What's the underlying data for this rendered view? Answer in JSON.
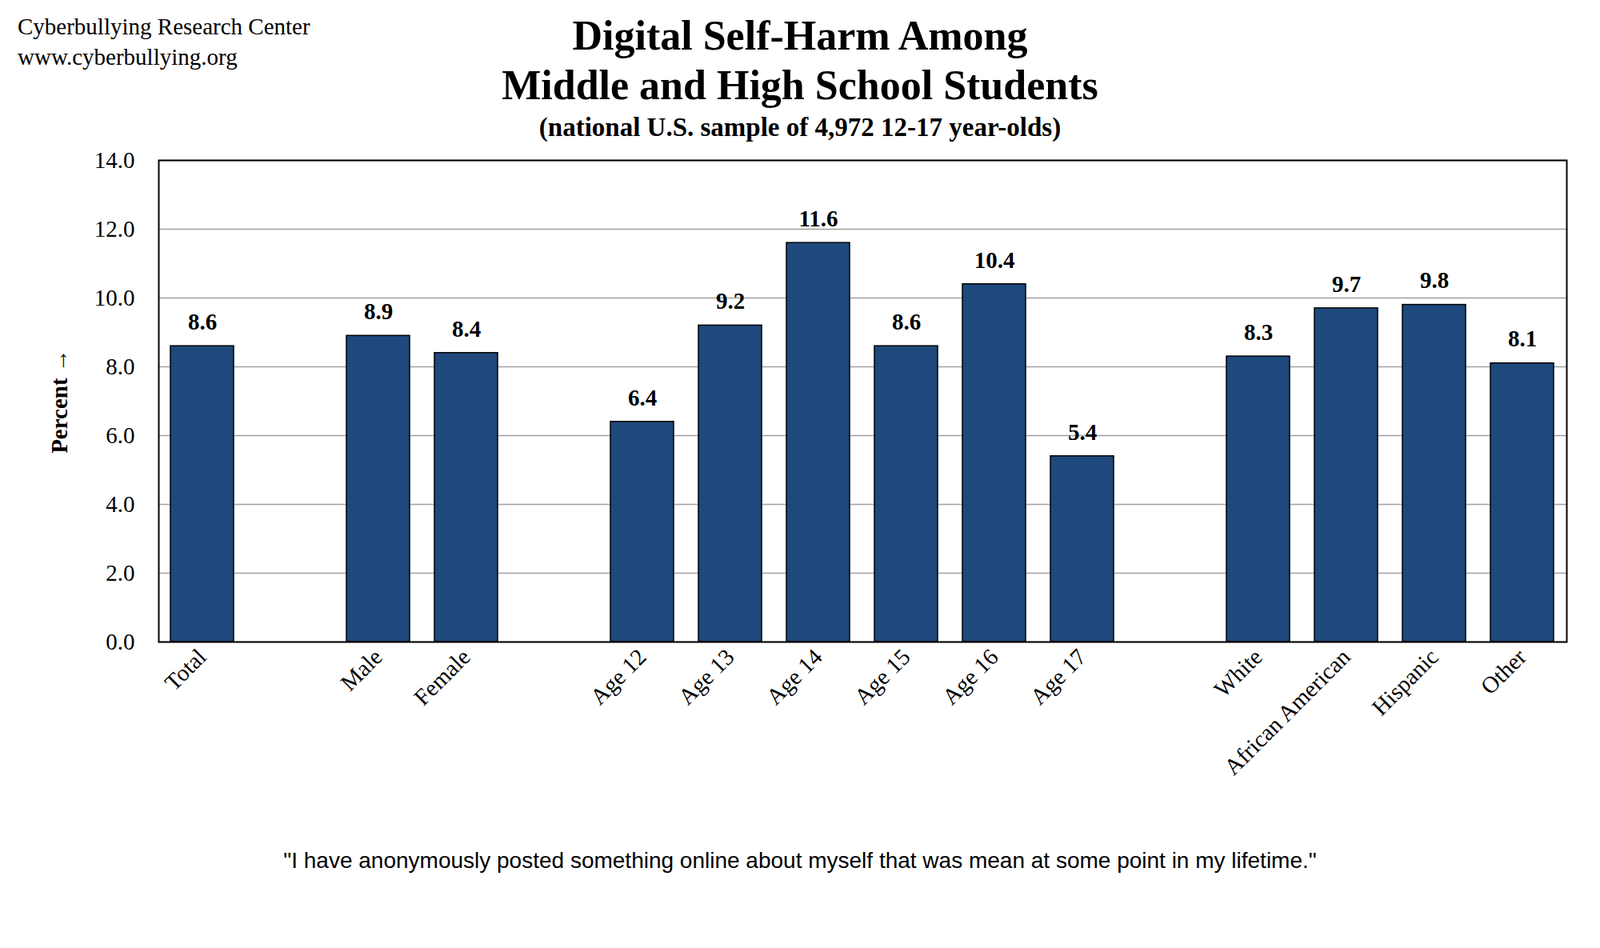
{
  "chart_data": {
    "type": "bar",
    "title": "Digital Self-Harm Among\nMiddle and High School Students",
    "subtitle": "(national U.S. sample of 4,972 12-17 year-olds)",
    "source": [
      "Cyberbullying Research Center",
      "www.cyberbullying.org"
    ],
    "caption": "\"I have anonymously posted something online about myself that was mean at some point in my lifetime.\"",
    "ylabel": "Percent",
    "categories": [
      "Total",
      null,
      "Male",
      "Female",
      null,
      "Age 12",
      "Age 13",
      "Age 14",
      "Age 15",
      "Age 16",
      "Age 17",
      null,
      "White",
      "African American",
      "Hispanic",
      "Other"
    ],
    "values": [
      8.6,
      null,
      8.9,
      8.4,
      null,
      6.4,
      9.2,
      11.6,
      8.6,
      10.4,
      5.4,
      null,
      8.3,
      9.7,
      9.8,
      8.1
    ],
    "color": "#1f497d",
    "ylim": [
      0,
      14
    ],
    "yticks": [
      {
        "value": 0,
        "label": "0.0"
      },
      {
        "value": 2,
        "label": "2.0"
      },
      {
        "value": 4,
        "label": "4.0"
      },
      {
        "value": 6,
        "label": "6.0"
      },
      {
        "value": 8,
        "label": "8.0"
      },
      {
        "value": 10,
        "label": "10.0"
      },
      {
        "value": 12,
        "label": "12.0"
      },
      {
        "value": 14,
        "label": "14.0"
      }
    ],
    "grid": true,
    "data_labels": true
  }
}
